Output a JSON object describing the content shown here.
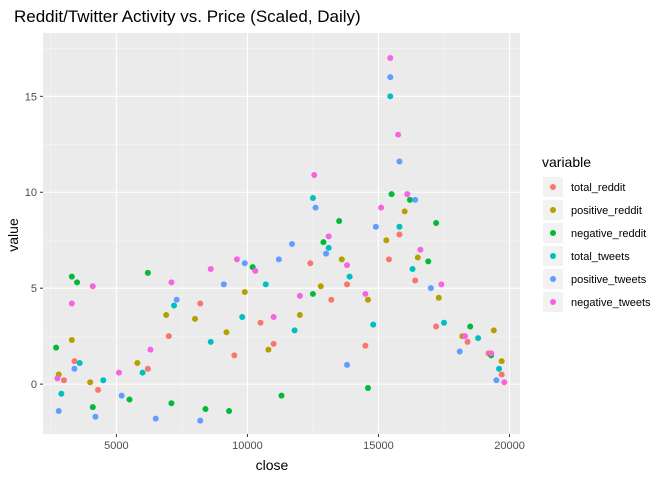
{
  "chart_data": {
    "type": "scatter",
    "title": "Reddit/Twitter Activity vs. Price (Scaled, Daily)",
    "xlabel": "close",
    "ylabel": "value",
    "xlim": [
      2200,
      20400
    ],
    "ylim": [
      -2.6,
      18.3
    ],
    "x_ticks": [
      5000,
      10000,
      15000,
      20000
    ],
    "x_tick_labels": [
      "5000",
      "10000",
      "15000",
      "20000"
    ],
    "y_ticks": [
      0,
      5,
      10,
      15
    ],
    "y_tick_labels": [
      "0",
      "5",
      "10",
      "15"
    ],
    "grid": true,
    "legend": {
      "title": "variable",
      "position": "right"
    },
    "series": [
      {
        "name": "total_reddit",
        "color": "#F8766D",
        "points": [
          [
            3000,
            0.2
          ],
          [
            3400,
            1.2
          ],
          [
            4300,
            -0.3
          ],
          [
            6200,
            0.8
          ],
          [
            7000,
            2.5
          ],
          [
            8200,
            4.2
          ],
          [
            9500,
            1.5
          ],
          [
            10500,
            3.2
          ],
          [
            11000,
            2.1
          ],
          [
            12400,
            6.3
          ],
          [
            13200,
            4.4
          ],
          [
            13800,
            5.2
          ],
          [
            14500,
            2.0
          ],
          [
            15400,
            6.5
          ],
          [
            15800,
            7.8
          ],
          [
            16400,
            5.4
          ],
          [
            17200,
            3.0
          ],
          [
            18400,
            2.2
          ],
          [
            19200,
            1.6
          ],
          [
            19700,
            0.5
          ]
        ]
      },
      {
        "name": "positive_reddit",
        "color": "#B79F00",
        "points": [
          [
            2800,
            0.5
          ],
          [
            3300,
            2.3
          ],
          [
            4000,
            0.1
          ],
          [
            5800,
            1.1
          ],
          [
            6900,
            3.6
          ],
          [
            8000,
            3.4
          ],
          [
            9200,
            2.7
          ],
          [
            9900,
            4.8
          ],
          [
            10800,
            1.8
          ],
          [
            12000,
            3.6
          ],
          [
            12800,
            5.1
          ],
          [
            13600,
            6.5
          ],
          [
            14600,
            4.4
          ],
          [
            15300,
            7.5
          ],
          [
            16000,
            9.0
          ],
          [
            16500,
            6.6
          ],
          [
            17300,
            4.5
          ],
          [
            18200,
            2.5
          ],
          [
            19400,
            2.8
          ],
          [
            19700,
            1.2
          ]
        ]
      },
      {
        "name": "negative_reddit",
        "color": "#00BA38",
        "points": [
          [
            2700,
            1.9
          ],
          [
            3300,
            5.6
          ],
          [
            3500,
            5.3
          ],
          [
            4100,
            -1.2
          ],
          [
            5500,
            -0.8
          ],
          [
            6200,
            5.8
          ],
          [
            7100,
            -1.0
          ],
          [
            8400,
            -1.3
          ],
          [
            9300,
            -1.4
          ],
          [
            10200,
            6.1
          ],
          [
            11300,
            -0.6
          ],
          [
            12500,
            4.7
          ],
          [
            12900,
            7.4
          ],
          [
            13500,
            8.5
          ],
          [
            14600,
            -0.2
          ],
          [
            15500,
            9.9
          ],
          [
            16200,
            9.6
          ],
          [
            16900,
            6.4
          ],
          [
            17200,
            8.4
          ],
          [
            18500,
            3.0
          ],
          [
            19300,
            1.5
          ]
        ]
      },
      {
        "name": "total_tweets",
        "color": "#00BFC4",
        "points": [
          [
            2900,
            -0.5
          ],
          [
            3600,
            1.1
          ],
          [
            4500,
            0.2
          ],
          [
            6000,
            0.6
          ],
          [
            7200,
            4.1
          ],
          [
            8600,
            2.2
          ],
          [
            9800,
            3.5
          ],
          [
            10700,
            5.2
          ],
          [
            11800,
            2.8
          ],
          [
            12500,
            9.7
          ],
          [
            13100,
            7.1
          ],
          [
            13900,
            5.6
          ],
          [
            14800,
            3.1
          ],
          [
            15450,
            15.0
          ],
          [
            15800,
            8.2
          ],
          [
            16300,
            6.0
          ],
          [
            17500,
            3.2
          ],
          [
            18800,
            2.4
          ],
          [
            19600,
            0.8
          ]
        ]
      },
      {
        "name": "positive_tweets",
        "color": "#619CFF",
        "points": [
          [
            2800,
            -1.4
          ],
          [
            3400,
            0.8
          ],
          [
            4200,
            -1.7
          ],
          [
            5200,
            -0.6
          ],
          [
            6500,
            -1.8
          ],
          [
            7300,
            4.4
          ],
          [
            8200,
            -1.9
          ],
          [
            9100,
            5.2
          ],
          [
            9900,
            6.3
          ],
          [
            11200,
            6.5
          ],
          [
            11700,
            7.3
          ],
          [
            12600,
            9.2
          ],
          [
            13000,
            6.8
          ],
          [
            13800,
            1.0
          ],
          [
            14900,
            8.2
          ],
          [
            15450,
            16.0
          ],
          [
            15800,
            11.6
          ],
          [
            16400,
            9.6
          ],
          [
            17000,
            5.0
          ],
          [
            18100,
            1.7
          ],
          [
            19500,
            0.2
          ]
        ]
      },
      {
        "name": "negative_tweets",
        "color": "#F564E3",
        "points": [
          [
            2750,
            0.3
          ],
          [
            3300,
            4.2
          ],
          [
            4100,
            5.1
          ],
          [
            5100,
            0.6
          ],
          [
            6300,
            1.8
          ],
          [
            7100,
            5.3
          ],
          [
            8600,
            6.0
          ],
          [
            9600,
            6.5
          ],
          [
            10300,
            5.9
          ],
          [
            11000,
            3.5
          ],
          [
            12000,
            4.6
          ],
          [
            12550,
            10.9
          ],
          [
            13100,
            7.7
          ],
          [
            13800,
            6.2
          ],
          [
            14500,
            4.7
          ],
          [
            15100,
            9.2
          ],
          [
            15450,
            17.0
          ],
          [
            15750,
            13.0
          ],
          [
            16100,
            9.9
          ],
          [
            16600,
            7.0
          ],
          [
            17400,
            5.2
          ],
          [
            18300,
            2.5
          ],
          [
            19300,
            1.6
          ],
          [
            19800,
            0.1
          ]
        ]
      }
    ]
  }
}
